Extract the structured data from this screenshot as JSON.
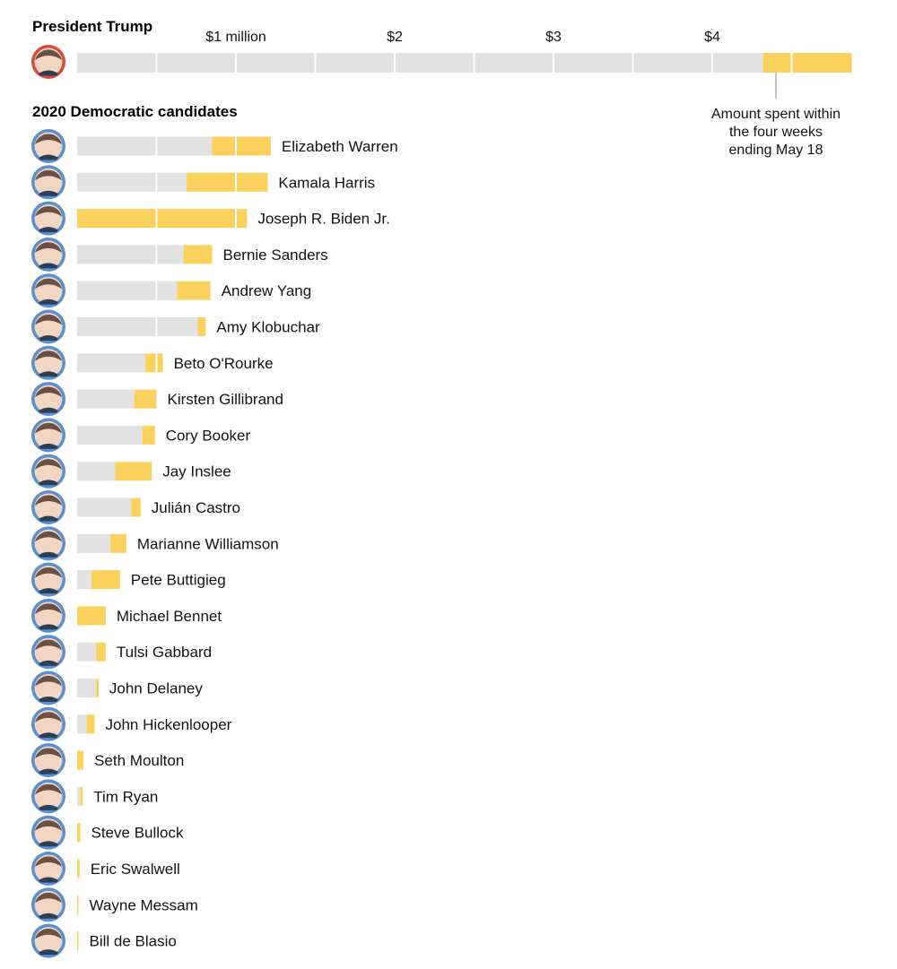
{
  "headers": {
    "trump": "President Trump",
    "democrats": "2020 Democratic candidates"
  },
  "annotation": [
    "Amount spent within",
    "the four weeks",
    "ending May 18"
  ],
  "colors": {
    "earlier": "#e2e2e2",
    "recent": "#f9d15c",
    "avatar_trump": "#d84a3a",
    "avatar_dem": "#5b8fcf"
  },
  "chart_data": {
    "type": "bar",
    "stacked": true,
    "orientation": "horizontal",
    "units": "US dollars (millions)",
    "x_ticks": [
      "$1 million",
      "$2",
      "$3",
      "$4"
    ],
    "x_tick_values": [
      1,
      2,
      3,
      4
    ],
    "xlim": [
      0,
      4.9
    ],
    "series_meaning": {
      "earlier": "Earlier spending",
      "recent": "Amount spent within the four weeks ending May 18"
    },
    "trump": {
      "name": "President Trump",
      "earlier": 4.32,
      "recent": 0.56
    },
    "candidates": [
      {
        "name": "Elizabeth Warren",
        "earlier": 0.85,
        "recent": 0.37
      },
      {
        "name": "Kamala Harris",
        "earlier": 0.69,
        "recent": 0.51
      },
      {
        "name": "Joseph R. Biden Jr.",
        "earlier": 0.0,
        "recent": 1.07
      },
      {
        "name": "Bernie Sanders",
        "earlier": 0.67,
        "recent": 0.18
      },
      {
        "name": "Andrew Yang",
        "earlier": 0.63,
        "recent": 0.21
      },
      {
        "name": "Amy Klobuchar",
        "earlier": 0.76,
        "recent": 0.05
      },
      {
        "name": "Beto O'Rourke",
        "earlier": 0.43,
        "recent": 0.11
      },
      {
        "name": "Kirsten Gillibrand",
        "earlier": 0.36,
        "recent": 0.14
      },
      {
        "name": "Cory Booker",
        "earlier": 0.41,
        "recent": 0.08
      },
      {
        "name": "Jay Inslee",
        "earlier": 0.24,
        "recent": 0.23
      },
      {
        "name": "Julián Castro",
        "earlier": 0.34,
        "recent": 0.06
      },
      {
        "name": "Marianne Williamson",
        "earlier": 0.21,
        "recent": 0.1
      },
      {
        "name": "Pete Buttigieg",
        "earlier": 0.09,
        "recent": 0.18
      },
      {
        "name": "Michael Bennet",
        "earlier": 0.0,
        "recent": 0.18
      },
      {
        "name": "Tulsi Gabbard",
        "earlier": 0.12,
        "recent": 0.06
      },
      {
        "name": "John Delaney",
        "earlier": 0.12,
        "recent": 0.015
      },
      {
        "name": "John Hickenlooper",
        "earlier": 0.06,
        "recent": 0.05
      },
      {
        "name": "Seth Moulton",
        "earlier": 0.0,
        "recent": 0.04
      },
      {
        "name": "Tim Ryan",
        "earlier": 0.02,
        "recent": 0.015
      },
      {
        "name": "Steve Bullock",
        "earlier": 0.0,
        "recent": 0.02
      },
      {
        "name": "Eric Swalwell",
        "earlier": 0.0,
        "recent": 0.015
      },
      {
        "name": "Wayne Messam",
        "earlier": 0.0,
        "recent": 0.004
      },
      {
        "name": "Bill de Blasio",
        "earlier": 0.0,
        "recent": 0.004
      }
    ]
  }
}
